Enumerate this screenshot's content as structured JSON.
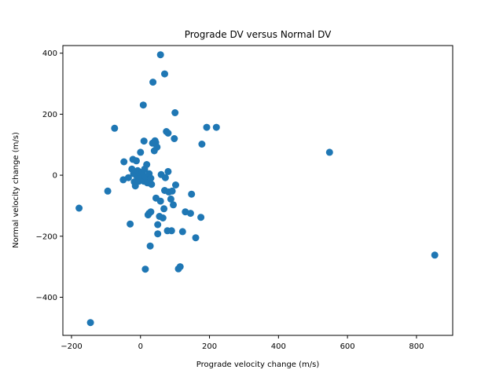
{
  "chart_data": {
    "type": "scatter",
    "title": "Prograde DV versus Normal DV",
    "xlabel": "Prograde velocity change (m/s)",
    "ylabel": "Normal velocity change (m/s)",
    "xlim": [
      -225,
      905
    ],
    "ylim": [
      -525,
      425
    ],
    "xticks": [
      -200,
      0,
      200,
      400,
      600,
      800
    ],
    "yticks": [
      -400,
      -200,
      0,
      200,
      400
    ],
    "tick_labels_x": [
      "−200",
      "0",
      "200",
      "400",
      "600",
      "800"
    ],
    "tick_labels_y": [
      "−400",
      "−200",
      "0",
      "200",
      "400"
    ],
    "marker_color": "#1f77b4",
    "grid": false,
    "points": [
      [
        -178,
        -108
      ],
      [
        -145,
        -483
      ],
      [
        -75,
        154
      ],
      [
        -95,
        -52
      ],
      [
        -50,
        -15
      ],
      [
        -48,
        44
      ],
      [
        -35,
        -8
      ],
      [
        -30,
        -160
      ],
      [
        -25,
        20
      ],
      [
        -22,
        52
      ],
      [
        -20,
        5
      ],
      [
        -18,
        -22
      ],
      [
        -15,
        -35
      ],
      [
        -12,
        47
      ],
      [
        -10,
        -5
      ],
      [
        -8,
        15
      ],
      [
        -5,
        -20
      ],
      [
        -3,
        8
      ],
      [
        0,
        75
      ],
      [
        2,
        -10
      ],
      [
        5,
        10
      ],
      [
        8,
        230
      ],
      [
        10,
        112
      ],
      [
        10,
        -20
      ],
      [
        12,
        20
      ],
      [
        14,
        -308
      ],
      [
        15,
        -5
      ],
      [
        18,
        35
      ],
      [
        20,
        -25
      ],
      [
        22,
        -130
      ],
      [
        25,
        -125
      ],
      [
        25,
        5
      ],
      [
        28,
        -232
      ],
      [
        30,
        -120
      ],
      [
        30,
        -10
      ],
      [
        32,
        -30
      ],
      [
        35,
        105
      ],
      [
        36,
        305
      ],
      [
        40,
        80
      ],
      [
        42,
        113
      ],
      [
        44,
        107
      ],
      [
        45,
        -75
      ],
      [
        48,
        92
      ],
      [
        50,
        -162
      ],
      [
        50,
        -192
      ],
      [
        55,
        -135
      ],
      [
        58,
        -85
      ],
      [
        58,
        395
      ],
      [
        60,
        2
      ],
      [
        65,
        -140
      ],
      [
        68,
        -110
      ],
      [
        70,
        332
      ],
      [
        70,
        -50
      ],
      [
        72,
        -8
      ],
      [
        75,
        143
      ],
      [
        78,
        -182
      ],
      [
        80,
        138
      ],
      [
        80,
        12
      ],
      [
        82,
        -55
      ],
      [
        88,
        -78
      ],
      [
        90,
        -182
      ],
      [
        92,
        -52
      ],
      [
        95,
        -97
      ],
      [
        98,
        120
      ],
      [
        100,
        205
      ],
      [
        102,
        -32
      ],
      [
        110,
        -307
      ],
      [
        115,
        -300
      ],
      [
        122,
        -185
      ],
      [
        130,
        -120
      ],
      [
        145,
        -125
      ],
      [
        148,
        -62
      ],
      [
        160,
        -205
      ],
      [
        175,
        -138
      ],
      [
        178,
        102
      ],
      [
        192,
        157
      ],
      [
        220,
        157
      ],
      [
        548,
        75
      ],
      [
        853,
        -262
      ]
    ]
  }
}
